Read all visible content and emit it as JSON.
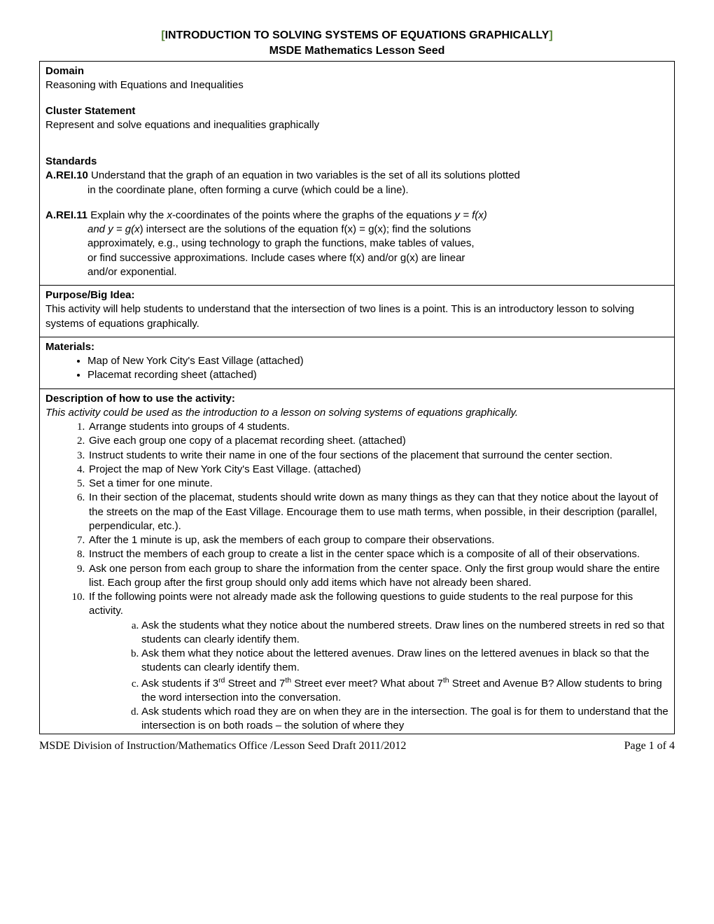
{
  "title": {
    "bracket_open": "[",
    "main": "INTRODUCTION TO SOLVING SYSTEMS OF EQUATIONS GRAPHICALLY",
    "bracket_close": "]",
    "subtitle": "MSDE Mathematics Lesson Seed"
  },
  "cell1": {
    "domain_label": "Domain",
    "domain_text": "Reasoning with Equations and Inequalities",
    "cluster_label": "Cluster Statement",
    "cluster_text": "Represent and solve equations and inequalities graphically",
    "standards_label": "Standards",
    "std1_code": "A.REI.10",
    "std1_text1": " Understand that the graph of an equation in two variables is the set of all its solutions plotted",
    "std1_text2": "in the coordinate plane, often forming a curve (which could be a line).",
    "std2_code": "A.REI.11",
    "std2_a": " Explain why the ",
    "std2_x": "x",
    "std2_b": "-coordinates of the points where the graphs of the equations ",
    "std2_yfx": "y = f(x)",
    "std2_and": "and ",
    "std2_ygx": "y = g(x",
    "std2_c": ") intersect are the solutions of the equation f(x) = g(x); find the solutions",
    "std2_d": "approximately, e.g., using technology to graph the functions, make tables of values,",
    "std2_e": "or find successive approximations. Include cases where f(x) and/or g(x) are linear",
    "std2_f": "and/or exponential."
  },
  "cell2": {
    "label": "Purpose/Big Idea:",
    "text": "This activity will help students to understand that the intersection of two lines is a point. This is an introductory lesson to solving systems of equations graphically."
  },
  "cell3": {
    "label": "Materials:",
    "items": [
      "Map of New York City's East Village  (attached)",
      "Placemat recording sheet (attached)"
    ]
  },
  "cell4": {
    "label": "Description of how to use the activity:",
    "intro": "This activity could be used as the introduction to a lesson on solving systems of equations graphically.",
    "steps": [
      "Arrange students into groups of 4 students.",
      "Give each group one copy of a placemat recording sheet. (attached)",
      "Instruct students to write their name in one of the four sections of the placement that surround the center section.",
      "Project the map of New York City's East Village. (attached)",
      "Set a timer for one minute.",
      "In their section of the placemat, students should write down as many things as they can that they notice about the layout of the streets on the map of the East Village. Encourage them to use math terms, when possible, in their description (parallel, perpendicular, etc.).",
      "After the 1 minute is up, ask the members of each group to compare their observations.",
      "Instruct the members of each group to create a list in the center space which is a composite of all of their observations.",
      "Ask one person from each group to share the information from the center space.  Only the first group would share the entire list. Each group after the first group should only add items which have not already been shared.",
      "If the following points were not already made ask the following questions to guide students to the real purpose for this activity."
    ],
    "subs": {
      "a": "Ask the students what they notice about the numbered streets. Draw lines on the numbered streets in red so that students can clearly identify them.",
      "b": "Ask them what they notice about the lettered avenues. Draw lines on the lettered avenues in black so that the students can clearly identify them.",
      "c_pre": "Ask students if 3",
      "c_rd": "rd",
      "c_mid1": " Street and 7",
      "c_th1": "th",
      "c_mid2": " Street ever meet? What about 7",
      "c_th2": "th",
      "c_post": " Street and Avenue B? Allow students to bring the word intersection into the conversation.",
      "d": "Ask students which road they are on when they are in the intersection. The goal is for them to understand that the intersection is on both roads – the solution of where they"
    }
  },
  "footer": {
    "left": "MSDE Division of Instruction/Mathematics Office /Lesson Seed   Draft 2011/2012",
    "right": "Page 1 of 4"
  }
}
